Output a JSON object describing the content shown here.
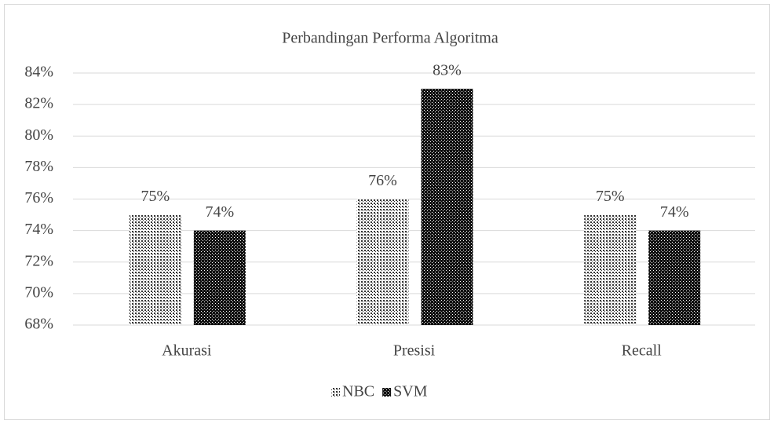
{
  "chart_data": {
    "type": "bar",
    "title": "Perbandingan Performa Algoritma",
    "categories": [
      "Akurasi",
      "Presisi",
      "Recall"
    ],
    "series": [
      {
        "name": "NBC",
        "color": "#333333",
        "values": [
          75,
          76,
          75
        ],
        "value_labels": [
          "75%",
          "76%",
          "75%"
        ]
      },
      {
        "name": "SVM",
        "color": "#111111",
        "values": [
          74,
          83,
          74
        ],
        "value_labels": [
          "74%",
          "83%",
          "74%"
        ]
      }
    ],
    "ylim": [
      68,
      84
    ],
    "yticks": [
      {
        "value": 68,
        "label": "68%"
      },
      {
        "value": 70,
        "label": "70%"
      },
      {
        "value": 72,
        "label": "72%"
      },
      {
        "value": 74,
        "label": "74%"
      },
      {
        "value": 76,
        "label": "76%"
      },
      {
        "value": 78,
        "label": "78%"
      },
      {
        "value": 80,
        "label": "80%"
      },
      {
        "value": 82,
        "label": "82%"
      },
      {
        "value": 84,
        "label": "84%"
      }
    ],
    "grid": true,
    "legend": "bottom"
  }
}
